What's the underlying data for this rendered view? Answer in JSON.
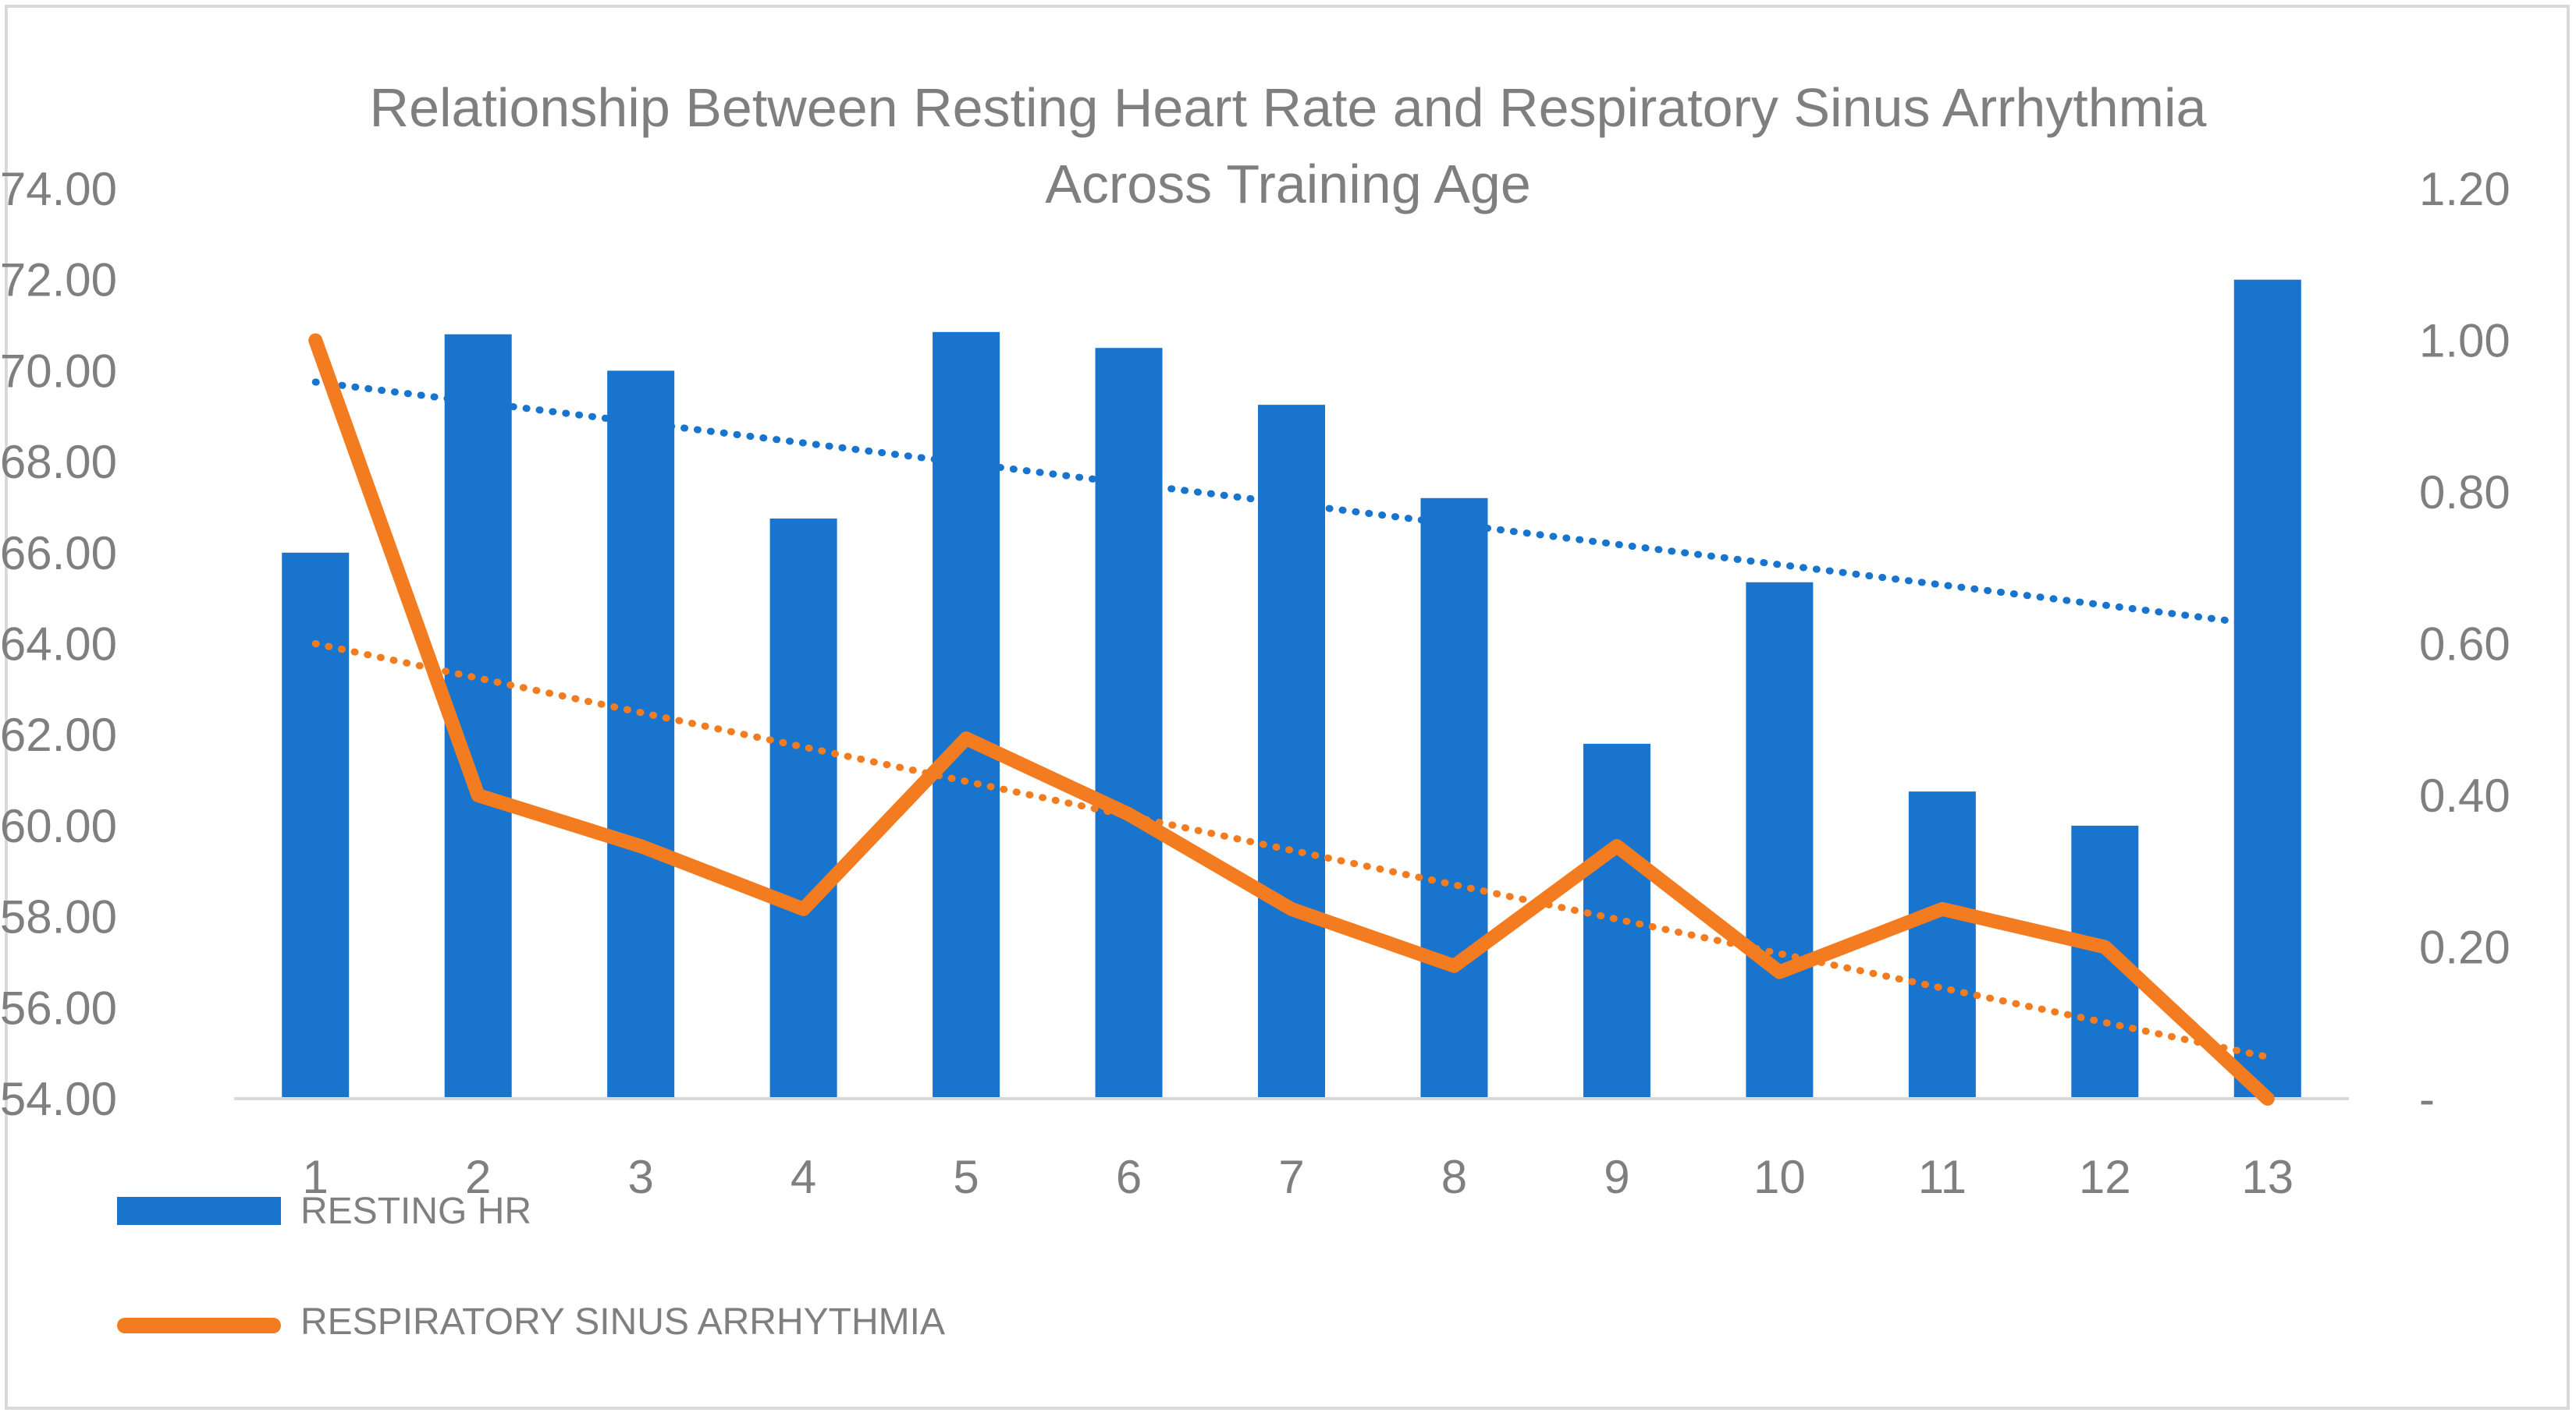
{
  "chart_data": {
    "type": "bar",
    "title": "Relationship Between Resting Heart Rate and Respiratory Sinus Arrhythmia",
    "subtitle": "Across Training Age",
    "categories": [
      "1",
      "2",
      "3",
      "4",
      "5",
      "6",
      "7",
      "8",
      "9",
      "10",
      "11",
      "12",
      "13"
    ],
    "series": [
      {
        "name": "RESTING HR",
        "type": "bar",
        "axis": "left",
        "color": "#1874cd",
        "values": [
          66.0,
          70.8,
          70.0,
          66.75,
          70.85,
          70.5,
          69.25,
          67.2,
          61.8,
          65.35,
          60.75,
          60.0,
          72.0
        ],
        "trendline": {
          "style": "dotted",
          "start": 69.75,
          "end": 64.4
        }
      },
      {
        "name": "RESPIRATORY SINUS ARRHYTHMIA",
        "type": "line",
        "axis": "right",
        "color": "#f47c20",
        "values": [
          1.0,
          0.4,
          0.333,
          0.25,
          0.475,
          0.375,
          0.25,
          0.175,
          0.333,
          0.167,
          0.25,
          0.2,
          0.0
        ],
        "trendline": {
          "style": "dotted",
          "start": 0.6,
          "end": 0.055
        }
      }
    ],
    "y_left": {
      "min": 54,
      "max": 74,
      "ticks": [
        "54.00",
        "56.00",
        "58.00",
        "60.00",
        "62.00",
        "64.00",
        "66.00",
        "68.00",
        "70.00",
        "72.00",
        "74.00"
      ]
    },
    "y_right": {
      "min": 0,
      "max": 1.2,
      "ticks": [
        "-",
        "0.20",
        "0.40",
        "0.60",
        "0.80",
        "1.00",
        "1.20"
      ]
    },
    "grid": false,
    "legend_position": "bottom-left"
  },
  "legend": {
    "bar_label": "RESTING HR",
    "line_label": "RESPIRATORY SINUS ARRHYTHMIA"
  }
}
